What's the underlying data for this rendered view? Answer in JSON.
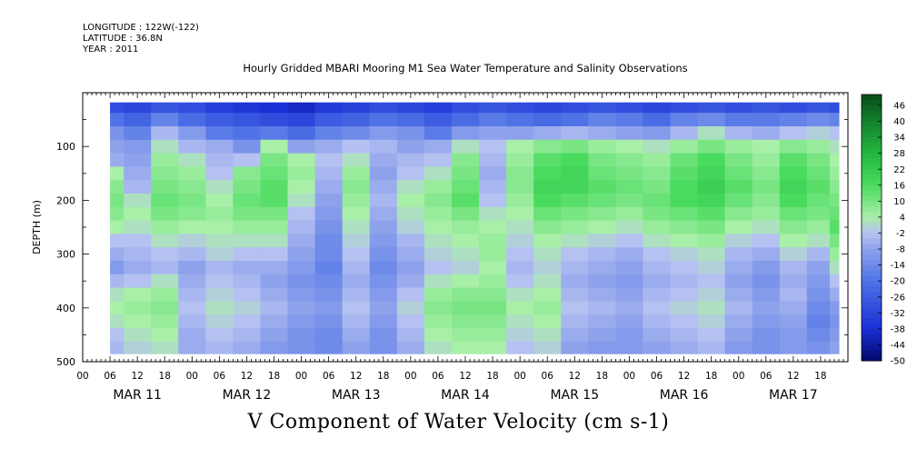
{
  "header": {
    "longitude": "LONGITUDE : 122W(-122)",
    "latitude": "LATITUDE : 36.8N",
    "year": "YEAR : 2011"
  },
  "colors": {
    "deep_blue": "#1a2fd6",
    "mid_blue": "#4f73e6",
    "light_blue": "#a7b6ee",
    "light_green": "#9ae89a",
    "green": "#49db5e",
    "dark_green": "#137a2c"
  },
  "chart_data": {
    "type": "heatmap",
    "title": "Hourly Gridded MBARI Mooring M1 Sea Water Temperature and Salinity Observations",
    "xlabel": "V Component of Water Velocity (cm s-1)",
    "ylabel": "DEPTH (m)",
    "x_axis": {
      "hour_ticks": [
        "00",
        "06",
        "12",
        "18",
        "00",
        "06",
        "12",
        "18",
        "00",
        "06",
        "12",
        "18",
        "00",
        "06",
        "12",
        "18",
        "00",
        "06",
        "12",
        "18",
        "00",
        "06",
        "12",
        "18",
        "00",
        "06",
        "12",
        "18"
      ],
      "day_labels": [
        "MAR 11",
        "MAR 12",
        "MAR 13",
        "MAR 14",
        "MAR 15",
        "MAR 16",
        "MAR 17"
      ],
      "range_hours": [
        0,
        168
      ]
    },
    "y_axis": {
      "ticks": [
        100,
        200,
        300,
        400,
        500
      ],
      "range": [
        0,
        500
      ],
      "reversed": true
    },
    "colorbar": {
      "labels": [
        "46",
        "40",
        "34",
        "28",
        "22",
        "16",
        "10",
        "4",
        "-2",
        "-8",
        "-14",
        "-20",
        "-26",
        "-32",
        "-38",
        "-44",
        "-50"
      ],
      "range": [
        -50,
        50
      ]
    },
    "data_extent": {
      "hour_start": 6,
      "hour_end": 166,
      "depth_top": 18,
      "depth_bottom": 485
    },
    "v_velocity_grid": {
      "hours": [
        6,
        12,
        18,
        24,
        30,
        36,
        42,
        48,
        54,
        60,
        66,
        72,
        78,
        84,
        90,
        96,
        102,
        108,
        114,
        120,
        126,
        132,
        138,
        144,
        150,
        156,
        162,
        166
      ],
      "depths": [
        25,
        50,
        75,
        100,
        125,
        150,
        175,
        200,
        225,
        250,
        275,
        300,
        325,
        350,
        375,
        400,
        425,
        450,
        475
      ],
      "values": [
        [
          -30,
          -32,
          -28,
          -30,
          -34,
          -36,
          -38,
          -40,
          -35,
          -33,
          -30,
          -32,
          -34,
          -30,
          -28,
          -30,
          -32,
          -30,
          -28,
          -30,
          -32,
          -30,
          -28,
          -30,
          -28,
          -30,
          -28,
          -30
        ],
        [
          -20,
          -24,
          -16,
          -22,
          -26,
          -28,
          -30,
          -32,
          -26,
          -24,
          -20,
          -22,
          -26,
          -22,
          -18,
          -20,
          -22,
          -20,
          -16,
          -18,
          -22,
          -16,
          -14,
          -18,
          -18,
          -16,
          -14,
          -16
        ],
        [
          -12,
          -16,
          -4,
          -10,
          -18,
          -20,
          -18,
          -22,
          -16,
          -14,
          -10,
          -12,
          -18,
          -10,
          -8,
          -8,
          -6,
          -4,
          -6,
          -8,
          -10,
          -4,
          2,
          -4,
          -6,
          -2,
          0,
          -2
        ],
        [
          -8,
          -10,
          2,
          -4,
          -6,
          -12,
          4,
          -8,
          -6,
          -2,
          -4,
          -8,
          -6,
          2,
          -2,
          4,
          8,
          10,
          6,
          4,
          2,
          6,
          10,
          6,
          4,
          8,
          6,
          2
        ],
        [
          -6,
          -8,
          6,
          2,
          -4,
          -2,
          10,
          4,
          -2,
          2,
          -6,
          -4,
          -2,
          8,
          -4,
          6,
          14,
          16,
          10,
          8,
          6,
          12,
          16,
          10,
          6,
          14,
          10,
          4
        ],
        [
          4,
          -6,
          8,
          6,
          -2,
          8,
          12,
          6,
          -4,
          6,
          -8,
          -2,
          2,
          10,
          -6,
          8,
          16,
          18,
          12,
          10,
          8,
          14,
          18,
          12,
          8,
          16,
          12,
          6
        ],
        [
          8,
          -4,
          10,
          8,
          2,
          10,
          14,
          4,
          -6,
          8,
          -6,
          2,
          6,
          12,
          -4,
          8,
          18,
          18,
          14,
          12,
          10,
          16,
          20,
          14,
          10,
          18,
          14,
          8
        ],
        [
          10,
          2,
          12,
          10,
          4,
          12,
          14,
          2,
          -8,
          6,
          -4,
          4,
          8,
          14,
          -2,
          6,
          16,
          14,
          12,
          10,
          12,
          16,
          18,
          12,
          8,
          16,
          12,
          10
        ],
        [
          8,
          4,
          10,
          8,
          6,
          10,
          10,
          -2,
          -10,
          4,
          -6,
          2,
          6,
          10,
          2,
          4,
          12,
          10,
          8,
          6,
          10,
          12,
          14,
          8,
          6,
          12,
          10,
          12
        ],
        [
          4,
          2,
          6,
          4,
          4,
          6,
          6,
          -4,
          -12,
          2,
          -8,
          0,
          4,
          6,
          4,
          2,
          8,
          6,
          4,
          2,
          6,
          8,
          10,
          4,
          2,
          8,
          6,
          14
        ],
        [
          -2,
          -2,
          2,
          0,
          2,
          2,
          2,
          -6,
          -14,
          0,
          -10,
          -4,
          2,
          4,
          6,
          0,
          4,
          2,
          0,
          -2,
          2,
          4,
          6,
          0,
          -2,
          4,
          2,
          10
        ],
        [
          -6,
          -4,
          -2,
          -4,
          0,
          -2,
          -2,
          -8,
          -14,
          -2,
          -12,
          -6,
          0,
          2,
          6,
          -2,
          2,
          -2,
          -4,
          -6,
          -2,
          0,
          2,
          -4,
          -6,
          0,
          -4,
          6
        ],
        [
          -10,
          -6,
          -4,
          -8,
          -4,
          -6,
          -6,
          -10,
          -16,
          -4,
          -14,
          -8,
          -2,
          0,
          4,
          -4,
          0,
          -4,
          -6,
          -8,
          -4,
          -2,
          0,
          -6,
          -10,
          -4,
          -8,
          2
        ],
        [
          -4,
          -2,
          2,
          -6,
          -2,
          -4,
          -8,
          -12,
          -14,
          -6,
          -12,
          -6,
          2,
          4,
          6,
          -2,
          2,
          -6,
          -8,
          -10,
          -6,
          -4,
          -2,
          -8,
          -12,
          -6,
          -10,
          -2
        ],
        [
          2,
          4,
          6,
          -4,
          0,
          -2,
          -6,
          -10,
          -12,
          -4,
          -10,
          -2,
          6,
          8,
          8,
          2,
          4,
          -4,
          -6,
          -8,
          -4,
          -2,
          0,
          -6,
          -10,
          -4,
          -12,
          -6
        ],
        [
          4,
          6,
          8,
          -2,
          2,
          0,
          -4,
          -8,
          -10,
          -2,
          -8,
          0,
          8,
          10,
          10,
          4,
          6,
          -2,
          -4,
          -6,
          -2,
          0,
          2,
          -4,
          -8,
          -6,
          -14,
          -10
        ],
        [
          2,
          4,
          6,
          -4,
          0,
          -2,
          -6,
          -10,
          -12,
          -4,
          -10,
          -2,
          6,
          8,
          8,
          2,
          4,
          -4,
          -6,
          -8,
          -4,
          -2,
          0,
          -6,
          -10,
          -8,
          -16,
          -12
        ],
        [
          -2,
          2,
          4,
          -6,
          -2,
          -4,
          -8,
          -12,
          -14,
          -6,
          -12,
          -4,
          4,
          6,
          6,
          0,
          2,
          -6,
          -8,
          -10,
          -6,
          -4,
          -2,
          -8,
          -12,
          -10,
          -14,
          -10
        ],
        [
          -4,
          0,
          2,
          -6,
          -4,
          -6,
          -10,
          -12,
          -14,
          -8,
          -12,
          -6,
          2,
          4,
          4,
          -2,
          0,
          -8,
          -10,
          -10,
          -8,
          -6,
          -4,
          -10,
          -12,
          -10,
          -12,
          -8
        ]
      ]
    }
  }
}
